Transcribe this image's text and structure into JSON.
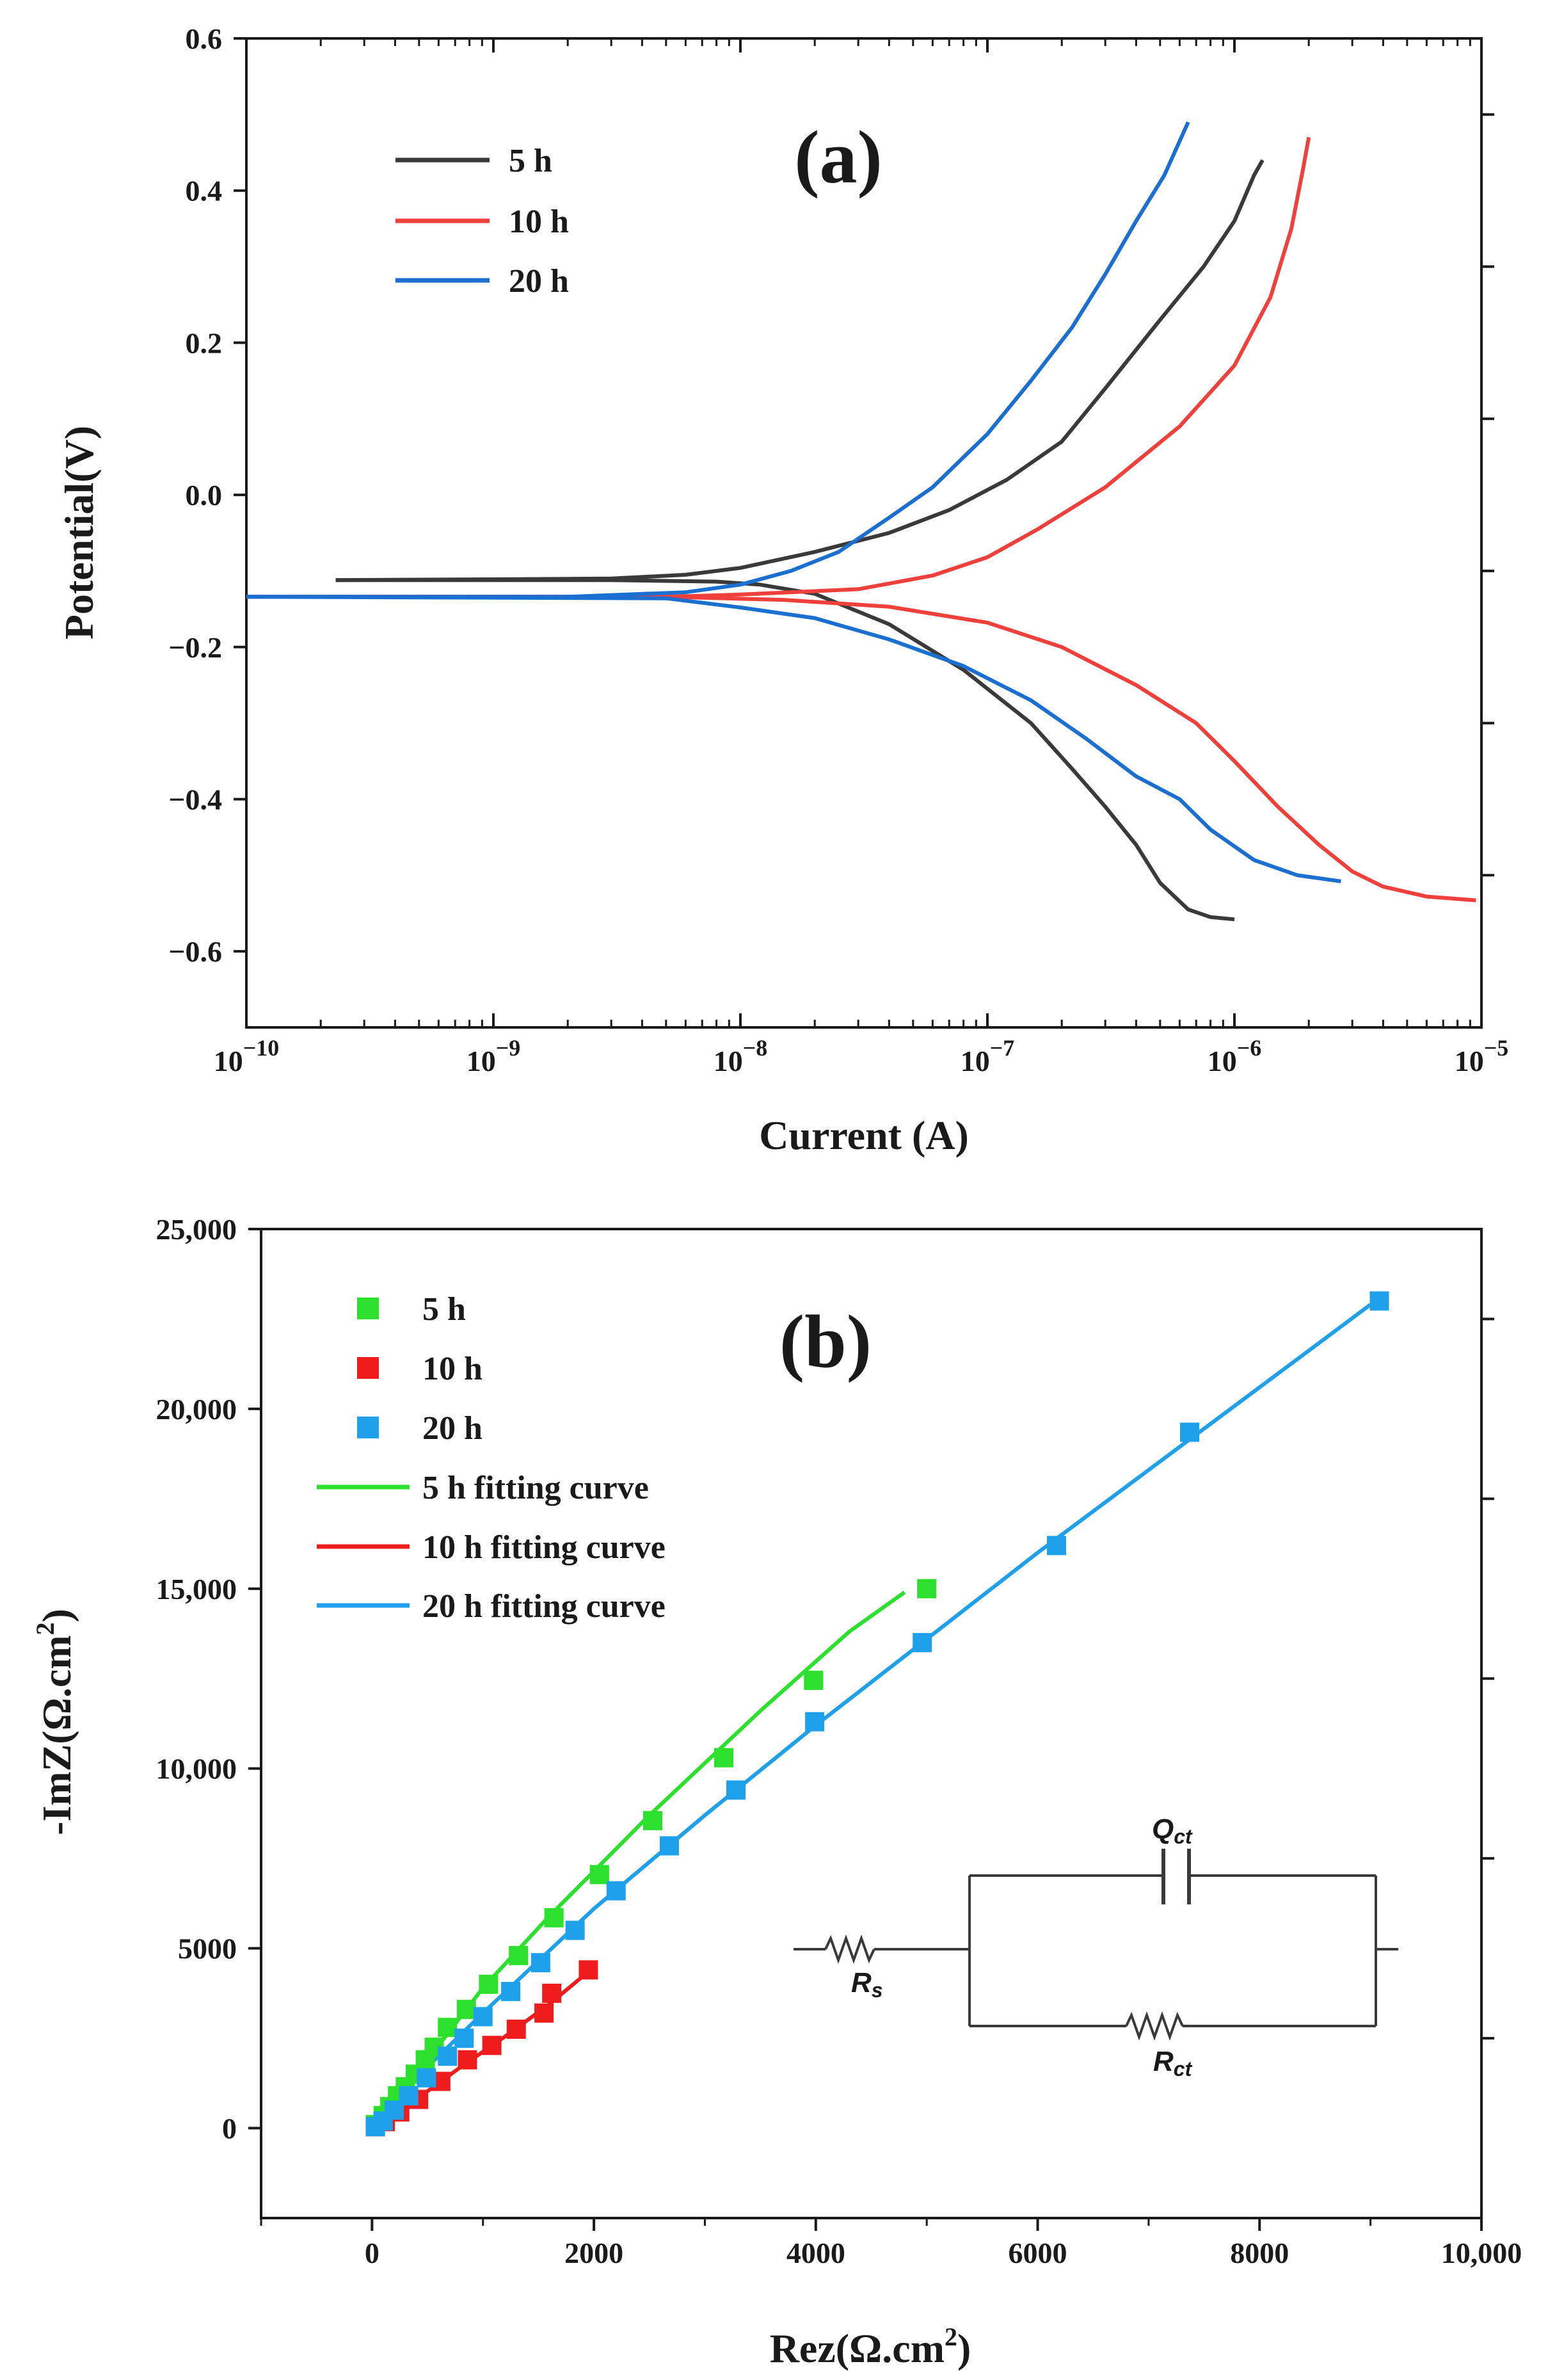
{
  "chart_data": [
    {
      "id": "a",
      "type": "line",
      "panel_label": "(a)",
      "xlabel": "Current (A)",
      "ylabel": "Potential(V)",
      "xscale": "log",
      "xlim": [
        1e-10,
        1e-05
      ],
      "ylim": [
        -0.7,
        0.6
      ],
      "xticks": [
        {
          "base": "10",
          "exp": "−10",
          "value": 1e-10
        },
        {
          "base": "10",
          "exp": "−9",
          "value": 1e-09
        },
        {
          "base": "10",
          "exp": "−8",
          "value": 1e-08
        },
        {
          "base": "10",
          "exp": "−7",
          "value": 1e-07
        },
        {
          "base": "10",
          "exp": "−6",
          "value": 1e-06
        },
        {
          "base": "10",
          "exp": "−5",
          "value": 1e-05
        }
      ],
      "yticks": [
        {
          "label": "0.6",
          "value": 0.6
        },
        {
          "label": "0.4",
          "value": 0.4
        },
        {
          "label": "0.2",
          "value": 0.2
        },
        {
          "label": "0.0",
          "value": 0.0
        },
        {
          "label": "−0.2",
          "value": -0.2
        },
        {
          "label": "−0.4",
          "value": -0.4
        },
        {
          "label": "−0.6",
          "value": -0.6
        }
      ],
      "legend_position": "top-left",
      "series": [
        {
          "name": "5 h",
          "color": "#3a3a3a",
          "anodic": [
            [
              2.3e-10,
              -0.112
            ],
            [
              1e-09,
              -0.111
            ],
            [
              3e-09,
              -0.11
            ],
            [
              6e-09,
              -0.105
            ],
            [
              1e-08,
              -0.096
            ],
            [
              2e-08,
              -0.075
            ],
            [
              4e-08,
              -0.05
            ],
            [
              7e-08,
              -0.02
            ],
            [
              1.2e-07,
              0.02
            ],
            [
              2e-07,
              0.07
            ],
            [
              3e-07,
              0.14
            ],
            [
              5e-07,
              0.23
            ],
            [
              7.5e-07,
              0.3
            ],
            [
              1e-06,
              0.36
            ],
            [
              1.2e-06,
              0.42
            ],
            [
              1.3e-06,
              0.44
            ]
          ],
          "cathodic": [
            [
              2.3e-10,
              -0.112
            ],
            [
              3e-09,
              -0.112
            ],
            [
              8e-09,
              -0.114
            ],
            [
              1.2e-08,
              -0.118
            ],
            [
              2e-08,
              -0.13
            ],
            [
              4e-08,
              -0.17
            ],
            [
              8e-08,
              -0.23
            ],
            [
              1.5e-07,
              -0.3
            ],
            [
              2.2e-07,
              -0.36
            ],
            [
              3e-07,
              -0.41
            ],
            [
              4e-07,
              -0.46
            ],
            [
              5e-07,
              -0.51
            ],
            [
              6.5e-07,
              -0.545
            ],
            [
              8e-07,
              -0.555
            ],
            [
              1e-06,
              -0.558
            ]
          ]
        },
        {
          "name": "10 h",
          "color": "#f0403c",
          "anodic": [
            [
              1e-10,
              -0.134
            ],
            [
              1e-09,
              -0.134
            ],
            [
              5e-09,
              -0.134
            ],
            [
              1e-08,
              -0.131
            ],
            [
              3e-08,
              -0.124
            ],
            [
              6e-08,
              -0.106
            ],
            [
              1e-07,
              -0.082
            ],
            [
              1.6e-07,
              -0.045
            ],
            [
              3e-07,
              0.01
            ],
            [
              6e-07,
              0.09
            ],
            [
              1e-06,
              0.17
            ],
            [
              1.4e-06,
              0.26
            ],
            [
              1.7e-06,
              0.35
            ],
            [
              1.9e-06,
              0.43
            ],
            [
              2e-06,
              0.47
            ]
          ],
          "cathodic": [
            [
              1e-10,
              -0.134
            ],
            [
              5e-09,
              -0.134
            ],
            [
              1.5e-08,
              -0.138
            ],
            [
              4e-08,
              -0.147
            ],
            [
              1e-07,
              -0.168
            ],
            [
              2e-07,
              -0.2
            ],
            [
              4e-07,
              -0.25
            ],
            [
              7e-07,
              -0.3
            ],
            [
              1e-06,
              -0.35
            ],
            [
              1.5e-06,
              -0.41
            ],
            [
              2.2e-06,
              -0.46
            ],
            [
              3e-06,
              -0.495
            ],
            [
              4e-06,
              -0.515
            ],
            [
              6e-06,
              -0.528
            ],
            [
              9.5e-06,
              -0.533
            ]
          ]
        },
        {
          "name": "20 h",
          "color": "#1a6fd0",
          "anodic": [
            [
              1e-10,
              -0.134
            ],
            [
              2e-09,
              -0.134
            ],
            [
              6e-09,
              -0.128
            ],
            [
              1e-08,
              -0.118
            ],
            [
              1.6e-08,
              -0.1
            ],
            [
              2.5e-08,
              -0.075
            ],
            [
              4e-08,
              -0.03
            ],
            [
              6e-08,
              0.01
            ],
            [
              1e-07,
              0.08
            ],
            [
              1.5e-07,
              0.15
            ],
            [
              2.2e-07,
              0.22
            ],
            [
              3e-07,
              0.29
            ],
            [
              4e-07,
              0.36
            ],
            [
              5.2e-07,
              0.42
            ],
            [
              6.5e-07,
              0.49
            ]
          ],
          "cathodic": [
            [
              1e-10,
              -0.134
            ],
            [
              5e-09,
              -0.136
            ],
            [
              1e-08,
              -0.148
            ],
            [
              2e-08,
              -0.162
            ],
            [
              4e-08,
              -0.19
            ],
            [
              8e-08,
              -0.225
            ],
            [
              1.5e-07,
              -0.27
            ],
            [
              2.5e-07,
              -0.32
            ],
            [
              4e-07,
              -0.37
            ],
            [
              6e-07,
              -0.4
            ],
            [
              8e-07,
              -0.44
            ],
            [
              1.2e-06,
              -0.48
            ],
            [
              1.8e-06,
              -0.5
            ],
            [
              2.7e-06,
              -0.508
            ]
          ]
        }
      ]
    },
    {
      "id": "b",
      "type": "scatter",
      "panel_label": "(b)",
      "xlabel": {
        "text": "Rez(Ω.cm",
        "sup": "2",
        "tail": ")"
      },
      "ylabel": {
        "text": "-ImZ(Ω.cm",
        "sup": "2",
        "tail": ")"
      },
      "xlim": [
        -1000,
        10000
      ],
      "ylim": [
        -2500,
        25000
      ],
      "xticks": [
        {
          "label": "0",
          "value": 0
        },
        {
          "label": "2000",
          "value": 2000
        },
        {
          "label": "4000",
          "value": 4000
        },
        {
          "label": "6000",
          "value": 6000
        },
        {
          "label": "8000",
          "value": 8000
        },
        {
          "label": "10,000",
          "value": 10000
        }
      ],
      "yticks": [
        {
          "label": "0",
          "value": 0
        },
        {
          "label": "5000",
          "value": 5000
        },
        {
          "label": "10,000",
          "value": 10000
        },
        {
          "label": "15,000",
          "value": 15000
        },
        {
          "label": "20,000",
          "value": 20000
        },
        {
          "label": "25,000",
          "value": 25000
        }
      ],
      "legend_position": "top-left",
      "series": [
        {
          "name": "5 h",
          "color": "#2de02d",
          "marker": "square",
          "points": [
            [
              30,
              100
            ],
            [
              100,
              350
            ],
            [
              160,
              600
            ],
            [
              230,
              900
            ],
            [
              300,
              1150
            ],
            [
              390,
              1500
            ],
            [
              480,
              1900
            ],
            [
              560,
              2250
            ],
            [
              680,
              2800
            ],
            [
              850,
              3300
            ],
            [
              1050,
              4000
            ],
            [
              1320,
              4800
            ],
            [
              1640,
              5850
            ],
            [
              2050,
              7050
            ],
            [
              2530,
              8550
            ],
            [
              3170,
              10300
            ],
            [
              3980,
              12450
            ],
            [
              5000,
              15000
            ]
          ]
        },
        {
          "name": "10 h",
          "color": "#ee1c1c",
          "marker": "square",
          "points": [
            [
              30,
              40
            ],
            [
              120,
              180
            ],
            [
              250,
              450
            ],
            [
              420,
              800
            ],
            [
              620,
              1300
            ],
            [
              860,
              1900
            ],
            [
              1080,
              2300
            ],
            [
              1300,
              2750
            ],
            [
              1550,
              3200
            ],
            [
              1620,
              3750
            ],
            [
              1950,
              4400
            ]
          ]
        },
        {
          "name": "20 h",
          "color": "#1ea0ea",
          "marker": "square",
          "points": [
            [
              30,
              40
            ],
            [
              100,
              200
            ],
            [
              200,
              500
            ],
            [
              330,
              900
            ],
            [
              490,
              1400
            ],
            [
              680,
              2000
            ],
            [
              830,
              2500
            ],
            [
              1000,
              3100
            ],
            [
              1250,
              3800
            ],
            [
              1520,
              4600
            ],
            [
              1830,
              5500
            ],
            [
              2200,
              6600
            ],
            [
              2680,
              7850
            ],
            [
              3280,
              9400
            ],
            [
              3990,
              11300
            ],
            [
              4960,
              13500
            ],
            [
              6170,
              16200
            ],
            [
              7370,
              19350
            ],
            [
              9080,
              23000
            ]
          ]
        },
        {
          "name": "5 h fitting curve",
          "color": "#2de02d",
          "line": true,
          "points": [
            [
              0,
              0
            ],
            [
              200,
              800
            ],
            [
              500,
              1900
            ],
            [
              1000,
              3900
            ],
            [
              1600,
              5900
            ],
            [
              2500,
              8700
            ],
            [
              3500,
              11600
            ],
            [
              4300,
              13800
            ],
            [
              4800,
              14900
            ]
          ]
        },
        {
          "name": "10 h fitting curve",
          "color": "#ee1c1c",
          "line": true,
          "points": [
            [
              0,
              0
            ],
            [
              400,
              800
            ],
            [
              800,
              1700
            ],
            [
              1200,
              2550
            ],
            [
              1600,
              3450
            ],
            [
              1950,
              4350
            ]
          ]
        },
        {
          "name": "20 h fitting curve",
          "color": "#1ea0ea",
          "line": true,
          "points": [
            [
              0,
              0
            ],
            [
              500,
              1700
            ],
            [
              1000,
              3200
            ],
            [
              2000,
              6100
            ],
            [
              3000,
              8700
            ],
            [
              4000,
              11200
            ],
            [
              5000,
              13600
            ],
            [
              6000,
              16000
            ],
            [
              7000,
              18300
            ],
            [
              8000,
              20600
            ],
            [
              9000,
              22900
            ]
          ]
        }
      ],
      "inset": {
        "labels": [
          {
            "main": "Q",
            "sub": "ct"
          },
          {
            "main": "R",
            "sub": "s"
          },
          {
            "main": "R",
            "sub": "ct"
          }
        ]
      }
    }
  ]
}
